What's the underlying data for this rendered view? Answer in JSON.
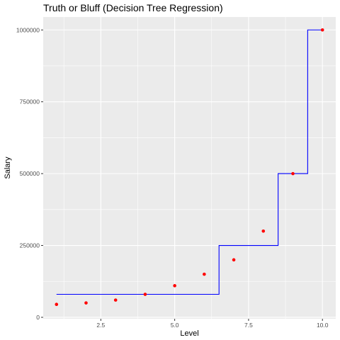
{
  "chart_data": {
    "type": "scatter",
    "title": "Truth or Bluff (Decision Tree Regression)",
    "xlabel": "Level",
    "ylabel": "Salary",
    "xlim": [
      0.55,
      10.45
    ],
    "ylim": [
      -5000,
      1045000
    ],
    "x_ticks": [
      2.5,
      5.0,
      7.5,
      10.0
    ],
    "x_tick_labels": [
      "2.5",
      "5.0",
      "7.5",
      "10.0"
    ],
    "y_ticks": [
      0,
      250000,
      500000,
      750000,
      1000000
    ],
    "y_tick_labels": [
      "0",
      "250000",
      "500000",
      "750000",
      "1000000"
    ],
    "grid": true,
    "legend": "none",
    "series": [
      {
        "kind": "points",
        "color": "#ff0000",
        "x": [
          1,
          2,
          3,
          4,
          5,
          6,
          7,
          8,
          9,
          10
        ],
        "y": [
          45000,
          50000,
          60000,
          80000,
          110000,
          150000,
          200000,
          300000,
          500000,
          1000000
        ]
      },
      {
        "kind": "step-line",
        "color": "#0000ff",
        "x": [
          1,
          6.5,
          6.5,
          8.5,
          8.5,
          9.5,
          9.5,
          10
        ],
        "y": [
          80000,
          80000,
          250000,
          250000,
          500000,
          500000,
          1000000,
          1000000
        ]
      }
    ],
    "colors": {
      "panel_bg": "#ebebeb",
      "grid": "#ffffff",
      "tick": "#333333",
      "tick_text": "#4d4d4d"
    }
  }
}
